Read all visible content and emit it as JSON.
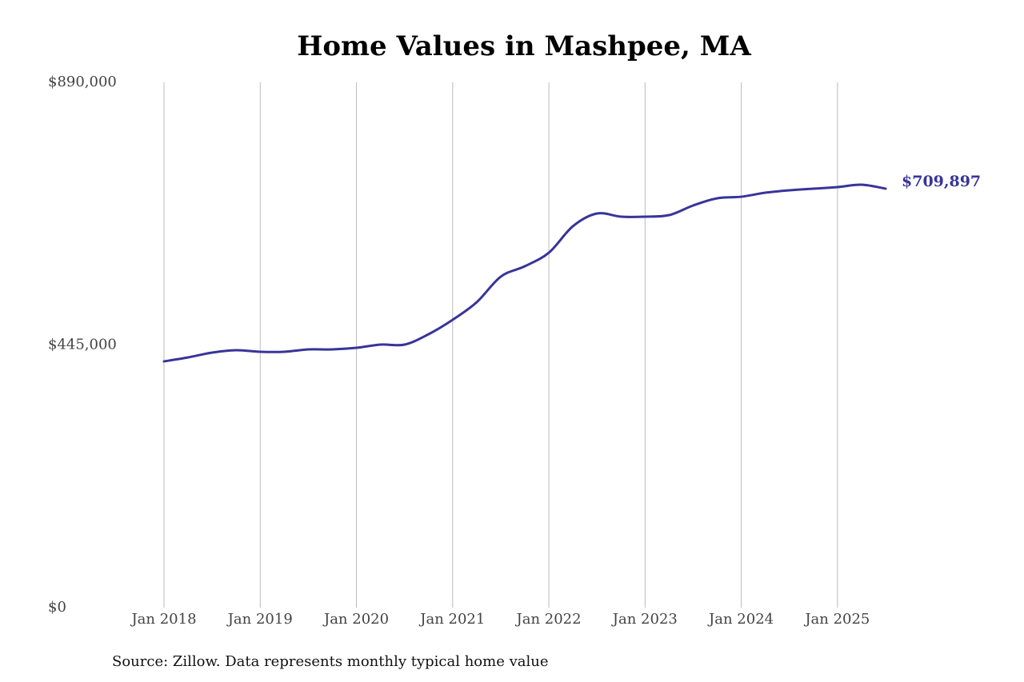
{
  "chart_data": {
    "type": "line",
    "title": "Home Values in Mashpee, MA",
    "source": "Source: Zillow. Data represents monthly typical home value",
    "x": [
      "2018-01",
      "2018-04",
      "2018-07",
      "2018-10",
      "2019-01",
      "2019-04",
      "2019-07",
      "2019-10",
      "2020-01",
      "2020-04",
      "2020-07",
      "2020-10",
      "2021-01",
      "2021-04",
      "2021-07",
      "2021-10",
      "2022-01",
      "2022-04",
      "2022-07",
      "2022-10",
      "2023-01",
      "2023-04",
      "2023-07",
      "2023-10",
      "2024-01",
      "2024-04",
      "2024-07",
      "2024-10",
      "2025-01",
      "2025-04",
      "2025-07"
    ],
    "series": [
      {
        "name": "Mashpee, MA",
        "color": "#38349a",
        "values": [
          417200,
          424000,
          432100,
          436200,
          433500,
          433500,
          437500,
          437500,
          440200,
          445700,
          445700,
          463300,
          487700,
          517500,
          560800,
          578400,
          601400,
          646200,
          667800,
          662400,
          662400,
          665100,
          681400,
          693600,
          696200,
          703000,
          707100,
          709800,
          712500,
          716600,
          709897
        ],
        "value_labels": [
          null,
          null,
          null,
          null,
          null,
          null,
          null,
          null,
          null,
          null,
          null,
          null,
          null,
          null,
          null,
          null,
          null,
          null,
          null,
          null,
          null,
          null,
          null,
          null,
          null,
          null,
          null,
          null,
          null,
          null,
          "$709,897"
        ]
      }
    ],
    "xlim": [
      "2018-01",
      "2025-07"
    ],
    "xticks": [
      {
        "value": "2018-01",
        "label": "Jan 2018"
      },
      {
        "value": "2019-01",
        "label": "Jan 2019"
      },
      {
        "value": "2020-01",
        "label": "Jan 2020"
      },
      {
        "value": "2021-01",
        "label": "Jan 2021"
      },
      {
        "value": "2022-01",
        "label": "Jan 2022"
      },
      {
        "value": "2023-01",
        "label": "Jan 2023"
      },
      {
        "value": "2024-01",
        "label": "Jan 2024"
      },
      {
        "value": "2025-01",
        "label": "Jan 2025"
      }
    ],
    "ylim": [
      0,
      890000
    ],
    "yticks": [
      {
        "value": 0,
        "label": "$0"
      },
      {
        "value": 445000,
        "label": "$445,000"
      },
      {
        "value": 890000,
        "label": "$890,000"
      }
    ],
    "grid": "x"
  }
}
